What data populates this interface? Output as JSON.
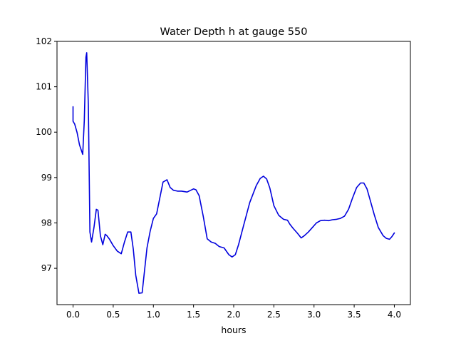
{
  "chart_data": {
    "type": "line",
    "title": "Water Depth h at gauge 550",
    "xlabel": "hours",
    "ylabel": "",
    "xlim": [
      -0.2,
      4.2
    ],
    "ylim": [
      96.2,
      102.0
    ],
    "xticks": [
      0.0,
      0.5,
      1.0,
      1.5,
      2.0,
      2.5,
      3.0,
      3.5,
      4.0
    ],
    "xtick_labels": [
      "0.0",
      "0.5",
      "1.0",
      "1.5",
      "2.0",
      "2.5",
      "3.0",
      "3.5",
      "4.0"
    ],
    "yticks": [
      97,
      98,
      99,
      100,
      101,
      102
    ],
    "ytick_labels": [
      "97",
      "98",
      "99",
      "100",
      "101",
      "102"
    ],
    "grid": false,
    "series": [
      {
        "color": "#0000dd",
        "x": [
          0.0,
          0.0,
          0.02,
          0.05,
          0.08,
          0.12,
          0.14,
          0.16,
          0.17,
          0.19,
          0.21,
          0.23,
          0.26,
          0.29,
          0.31,
          0.34,
          0.37,
          0.4,
          0.42,
          0.45,
          0.5,
          0.55,
          0.6,
          0.64,
          0.68,
          0.72,
          0.75,
          0.78,
          0.82,
          0.86,
          0.88,
          0.92,
          0.96,
          1.0,
          1.04,
          1.08,
          1.12,
          1.17,
          1.21,
          1.25,
          1.3,
          1.35,
          1.42,
          1.5,
          1.53,
          1.57,
          1.62,
          1.67,
          1.72,
          1.77,
          1.82,
          1.88,
          1.94,
          1.98,
          2.02,
          2.06,
          2.12,
          2.2,
          2.28,
          2.33,
          2.37,
          2.41,
          2.45,
          2.5,
          2.56,
          2.62,
          2.67,
          2.7,
          2.74,
          2.79,
          2.84,
          2.88,
          2.93,
          2.98,
          3.03,
          3.08,
          3.13,
          3.18,
          3.23,
          3.28,
          3.33,
          3.38,
          3.43,
          3.48,
          3.53,
          3.58,
          3.62,
          3.66,
          3.7,
          3.75,
          3.8,
          3.86,
          3.9,
          3.94,
          3.97,
          4.0
        ],
        "y": [
          100.56,
          100.24,
          100.18,
          99.99,
          99.72,
          99.51,
          100.25,
          101.65,
          101.75,
          100.6,
          97.8,
          97.58,
          97.9,
          98.3,
          98.28,
          97.72,
          97.52,
          97.75,
          97.72,
          97.65,
          97.5,
          97.38,
          97.32,
          97.58,
          97.8,
          97.8,
          97.42,
          96.85,
          96.45,
          96.46,
          96.78,
          97.45,
          97.82,
          98.1,
          98.2,
          98.55,
          98.9,
          98.95,
          98.78,
          98.72,
          98.7,
          98.7,
          98.68,
          98.75,
          98.73,
          98.6,
          98.15,
          97.65,
          97.58,
          97.55,
          97.48,
          97.45,
          97.3,
          97.25,
          97.3,
          97.52,
          97.92,
          98.45,
          98.82,
          98.98,
          99.03,
          98.97,
          98.77,
          98.38,
          98.17,
          98.08,
          98.06,
          97.97,
          97.88,
          97.78,
          97.67,
          97.72,
          97.8,
          97.9,
          98.0,
          98.05,
          98.06,
          98.05,
          98.07,
          98.08,
          98.1,
          98.15,
          98.3,
          98.55,
          98.78,
          98.88,
          98.88,
          98.75,
          98.5,
          98.18,
          97.9,
          97.72,
          97.66,
          97.64,
          97.7,
          97.78
        ]
      }
    ]
  }
}
